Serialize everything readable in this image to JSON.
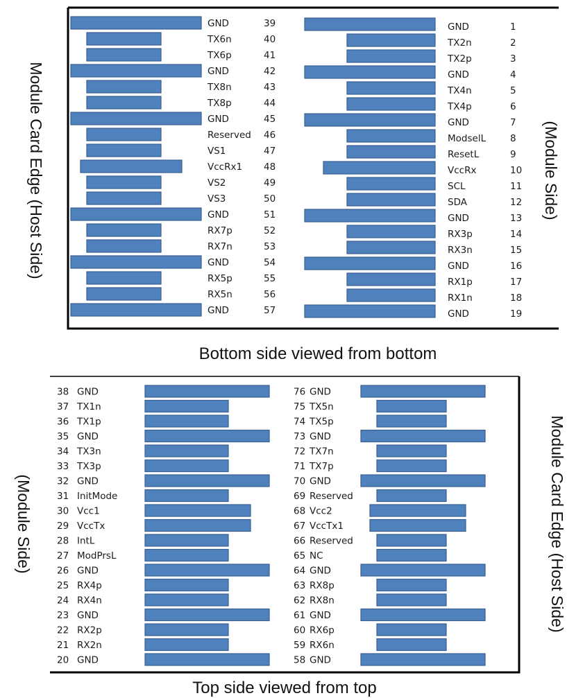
{
  "bottom_panel": {
    "caption": "Bottom side viewed from bottom",
    "left_side_label": "Module Card Edge (Host Side)",
    "right_side_label": "(Module Side)",
    "left_column": [
      {
        "name": "GND",
        "pin": "39",
        "type": "gnd"
      },
      {
        "name": "TX6n",
        "pin": "40",
        "type": "signal"
      },
      {
        "name": "TX6p",
        "pin": "41",
        "type": "signal"
      },
      {
        "name": "GND",
        "pin": "42",
        "type": "gnd"
      },
      {
        "name": "TX8n",
        "pin": "43",
        "type": "signal"
      },
      {
        "name": "TX8p",
        "pin": "44",
        "type": "signal"
      },
      {
        "name": "GND",
        "pin": "45",
        "type": "gnd"
      },
      {
        "name": "Reserved",
        "pin": "46",
        "type": "signal"
      },
      {
        "name": "VS1",
        "pin": "47",
        "type": "signal"
      },
      {
        "name": "VccRx1",
        "pin": "48",
        "type": "power"
      },
      {
        "name": "VS2",
        "pin": "49",
        "type": "signal"
      },
      {
        "name": "VS3",
        "pin": "50",
        "type": "signal"
      },
      {
        "name": "GND",
        "pin": "51",
        "type": "gnd"
      },
      {
        "name": "RX7p",
        "pin": "52",
        "type": "signal"
      },
      {
        "name": "RX7n",
        "pin": "53",
        "type": "signal"
      },
      {
        "name": "GND",
        "pin": "54",
        "type": "gnd"
      },
      {
        "name": "RX5p",
        "pin": "55",
        "type": "signal"
      },
      {
        "name": "RX5n",
        "pin": "56",
        "type": "signal"
      },
      {
        "name": "GND",
        "pin": "57",
        "type": "gnd"
      }
    ],
    "right_column": [
      {
        "name": "GND",
        "pin": "1",
        "type": "gnd"
      },
      {
        "name": "TX2n",
        "pin": "2",
        "type": "signal"
      },
      {
        "name": "TX2p",
        "pin": "3",
        "type": "signal"
      },
      {
        "name": "GND",
        "pin": "4",
        "type": "gnd"
      },
      {
        "name": "TX4n",
        "pin": "5",
        "type": "signal"
      },
      {
        "name": "TX4p",
        "pin": "6",
        "type": "signal"
      },
      {
        "name": "GND",
        "pin": "7",
        "type": "gnd"
      },
      {
        "name": "ModselL",
        "pin": "8",
        "type": "signal"
      },
      {
        "name": "ResetL",
        "pin": "9",
        "type": "signal"
      },
      {
        "name": "VccRx",
        "pin": "10",
        "type": "power"
      },
      {
        "name": "SCL",
        "pin": "11",
        "type": "signal"
      },
      {
        "name": "SDA",
        "pin": "12",
        "type": "signal"
      },
      {
        "name": "GND",
        "pin": "13",
        "type": "gnd"
      },
      {
        "name": "RX3p",
        "pin": "14",
        "type": "signal"
      },
      {
        "name": "RX3n",
        "pin": "15",
        "type": "signal"
      },
      {
        "name": "GND",
        "pin": "16",
        "type": "gnd"
      },
      {
        "name": "RX1p",
        "pin": "17",
        "type": "signal"
      },
      {
        "name": "RX1n",
        "pin": "18",
        "type": "signal"
      },
      {
        "name": "GND",
        "pin": "19",
        "type": "gnd"
      }
    ]
  },
  "top_panel": {
    "caption": "Top side viewed from top",
    "left_side_label": "(Module Side)",
    "right_side_label": "Module Card Edge (Host Side)",
    "left_column": [
      {
        "name": "GND",
        "pin": "38",
        "type": "gnd"
      },
      {
        "name": "TX1n",
        "pin": "37",
        "type": "signal"
      },
      {
        "name": "TX1p",
        "pin": "36",
        "type": "signal"
      },
      {
        "name": "GND",
        "pin": "35",
        "type": "gnd"
      },
      {
        "name": "TX3n",
        "pin": "34",
        "type": "signal"
      },
      {
        "name": "TX3p",
        "pin": "33",
        "type": "signal"
      },
      {
        "name": "GND",
        "pin": "32",
        "type": "gnd"
      },
      {
        "name": "InitMode",
        "pin": "31",
        "type": "signal"
      },
      {
        "name": "Vcc1",
        "pin": "30",
        "type": "power"
      },
      {
        "name": "VccTx",
        "pin": "29",
        "type": "power"
      },
      {
        "name": "IntL",
        "pin": "28",
        "type": "signal"
      },
      {
        "name": "ModPrsL",
        "pin": "27",
        "type": "signal"
      },
      {
        "name": "GND",
        "pin": "26",
        "type": "gnd"
      },
      {
        "name": "RX4p",
        "pin": "25",
        "type": "signal"
      },
      {
        "name": "RX4n",
        "pin": "24",
        "type": "signal"
      },
      {
        "name": "GND",
        "pin": "23",
        "type": "gnd"
      },
      {
        "name": "RX2p",
        "pin": "22",
        "type": "signal"
      },
      {
        "name": "RX2n",
        "pin": "21",
        "type": "signal"
      },
      {
        "name": "GND",
        "pin": "20",
        "type": "gnd"
      }
    ],
    "right_column": [
      {
        "name": "GND",
        "pin": "76",
        "type": "gnd"
      },
      {
        "name": "TX5n",
        "pin": "75",
        "type": "signal"
      },
      {
        "name": "TX5p",
        "pin": "74",
        "type": "signal"
      },
      {
        "name": "GND",
        "pin": "73",
        "type": "gnd"
      },
      {
        "name": "TX7n",
        "pin": "72",
        "type": "signal"
      },
      {
        "name": "TX7p",
        "pin": "71",
        "type": "signal"
      },
      {
        "name": "GND",
        "pin": "70",
        "type": "gnd"
      },
      {
        "name": "Reserved",
        "pin": "69",
        "type": "signal"
      },
      {
        "name": "Vcc2",
        "pin": "68",
        "type": "power"
      },
      {
        "name": "VccTx1",
        "pin": "67",
        "type": "power"
      },
      {
        "name": "Reserved",
        "pin": "66",
        "type": "signal"
      },
      {
        "name": "NC",
        "pin": "65",
        "type": "signal"
      },
      {
        "name": "GND",
        "pin": "64",
        "type": "gnd"
      },
      {
        "name": "RX8p",
        "pin": "63",
        "type": "signal"
      },
      {
        "name": "RX8n",
        "pin": "62",
        "type": "signal"
      },
      {
        "name": "GND",
        "pin": "61",
        "type": "gnd"
      },
      {
        "name": "RX6p",
        "pin": "60",
        "type": "signal"
      },
      {
        "name": "RX6n",
        "pin": "59",
        "type": "signal"
      },
      {
        "name": "GND",
        "pin": "58",
        "type": "gnd"
      }
    ]
  },
  "colors": {
    "pad_fill": "#4f81bd",
    "pad_stroke": "#3a5f8f",
    "frame": "#000000"
  }
}
